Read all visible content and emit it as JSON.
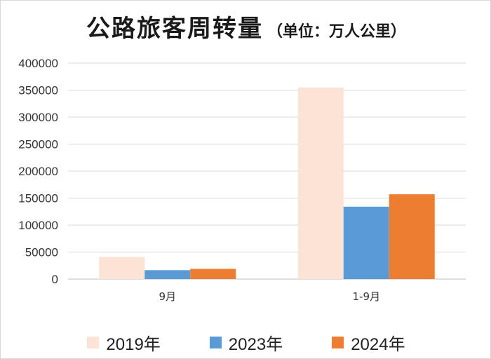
{
  "chart_data": {
    "type": "bar",
    "title": "公路旅客周转量",
    "subtitle": "（单位：万人公里）",
    "categories": [
      "9月",
      "1-9月"
    ],
    "series": [
      {
        "name": "2019年",
        "values": [
          41000,
          355000
        ],
        "color": "#fbe3d6"
      },
      {
        "name": "2023年",
        "values": [
          16500,
          134000
        ],
        "color": "#5b9bd5"
      },
      {
        "name": "2024年",
        "values": [
          19000,
          157000
        ],
        "color": "#ed7d31"
      }
    ],
    "ylim": [
      0,
      400000
    ],
    "yticks": [
      0,
      50000,
      100000,
      150000,
      200000,
      250000,
      300000,
      350000,
      400000
    ],
    "xlabel": "",
    "ylabel": "",
    "grid": true,
    "legend": "bottom"
  }
}
